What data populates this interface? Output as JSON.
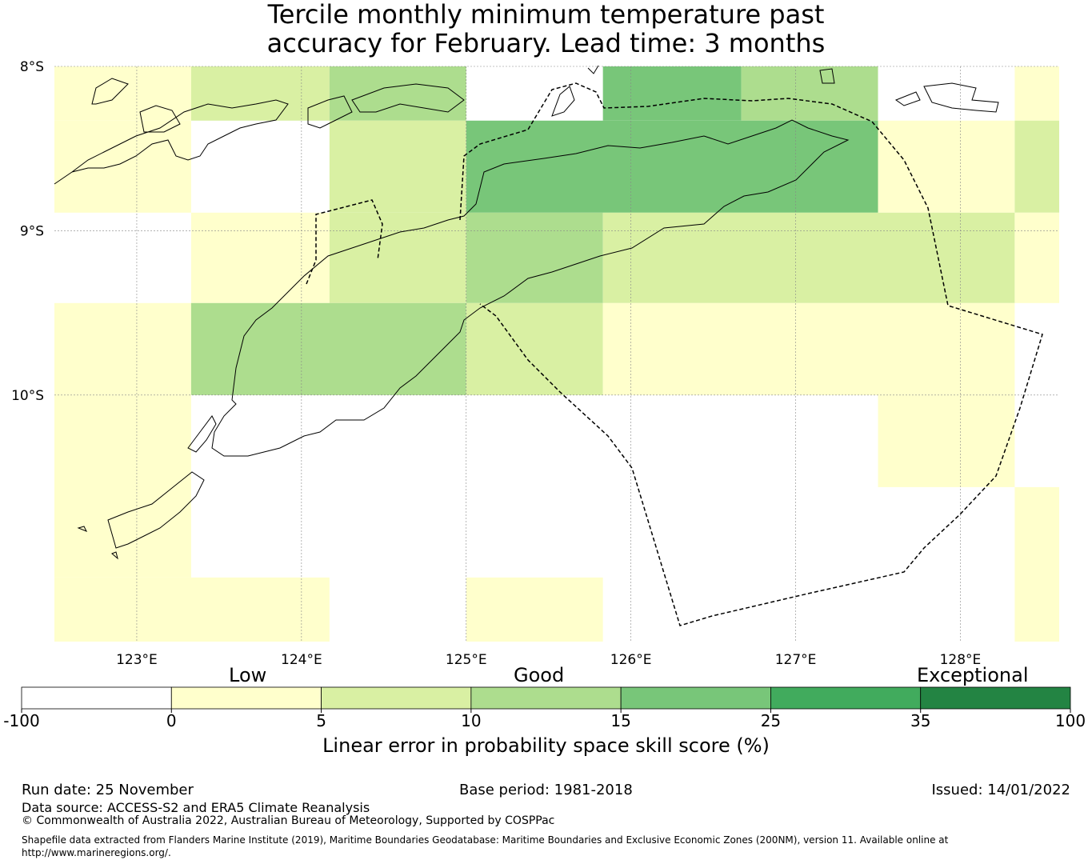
{
  "title": {
    "line1": "Tercile monthly minimum temperature past",
    "line2": "accuracy for February. Lead time: 3 months"
  },
  "map": {
    "lat_labels": [
      "8°S",
      "9°S",
      "10°S"
    ],
    "lon_labels": [
      "123°E",
      "124°E",
      "125°E",
      "126°E",
      "127°E",
      "128°E"
    ],
    "lon_values": [
      123,
      124,
      125,
      126,
      127,
      128
    ],
    "lat_values": [
      -8,
      -9,
      -10
    ],
    "extent": {
      "lon_min": 122.5,
      "lon_max": 128.6,
      "lat_min": -11.5,
      "lat_max": -8.0
    },
    "grid_cells": [
      {
        "lon0": 122.5,
        "lon1": 123.33,
        "lat0": -8.0,
        "lat1": -8.33,
        "cls": 1
      },
      {
        "lon0": 123.33,
        "lon1": 124.17,
        "lat0": -8.0,
        "lat1": -8.33,
        "cls": 2
      },
      {
        "lon0": 124.17,
        "lon1": 125.0,
        "lat0": -8.0,
        "lat1": -8.33,
        "cls": 3
      },
      {
        "lon0": 125.83,
        "lon1": 126.67,
        "lat0": -8.0,
        "lat1": -8.33,
        "cls": 4
      },
      {
        "lon0": 126.67,
        "lon1": 127.5,
        "lat0": -8.0,
        "lat1": -8.33,
        "cls": 3
      },
      {
        "lon0": 128.33,
        "lon1": 128.6,
        "lat0": -8.0,
        "lat1": -8.33,
        "cls": 1
      },
      {
        "lon0": 122.5,
        "lon1": 123.33,
        "lat0": -8.33,
        "lat1": -8.89,
        "cls": 1
      },
      {
        "lon0": 124.17,
        "lon1": 125.0,
        "lat0": -8.33,
        "lat1": -8.89,
        "cls": 2
      },
      {
        "lon0": 125.0,
        "lon1": 127.5,
        "lat0": -8.33,
        "lat1": -8.89,
        "cls": 4
      },
      {
        "lon0": 127.5,
        "lon1": 128.33,
        "lat0": -8.33,
        "lat1": -8.89,
        "cls": 1
      },
      {
        "lon0": 128.33,
        "lon1": 128.6,
        "lat0": -8.33,
        "lat1": -8.89,
        "cls": 2
      },
      {
        "lon0": 123.33,
        "lon1": 124.17,
        "lat0": -8.89,
        "lat1": -9.44,
        "cls": 1
      },
      {
        "lon0": 124.17,
        "lon1": 125.0,
        "lat0": -8.89,
        "lat1": -9.44,
        "cls": 2
      },
      {
        "lon0": 125.0,
        "lon1": 125.83,
        "lat0": -8.89,
        "lat1": -9.44,
        "cls": 3
      },
      {
        "lon0": 125.83,
        "lon1": 128.33,
        "lat0": -8.89,
        "lat1": -9.44,
        "cls": 2
      },
      {
        "lon0": 128.33,
        "lon1": 128.6,
        "lat0": -8.89,
        "lat1": -9.44,
        "cls": 1
      },
      {
        "lon0": 122.5,
        "lon1": 123.33,
        "lat0": -9.44,
        "lat1": -10.0,
        "cls": 1
      },
      {
        "lon0": 123.33,
        "lon1": 125.0,
        "lat0": -9.44,
        "lat1": -10.0,
        "cls": 3
      },
      {
        "lon0": 125.0,
        "lon1": 125.83,
        "lat0": -9.44,
        "lat1": -10.0,
        "cls": 2
      },
      {
        "lon0": 125.83,
        "lon1": 128.33,
        "lat0": -9.44,
        "lat1": -10.0,
        "cls": 1
      },
      {
        "lon0": 122.5,
        "lon1": 123.33,
        "lat0": -10.0,
        "lat1": -11.11,
        "cls": 1
      },
      {
        "lon0": 127.5,
        "lon1": 128.33,
        "lat0": -10.0,
        "lat1": -10.56,
        "cls": 1
      },
      {
        "lon0": 128.33,
        "lon1": 128.6,
        "lat0": -10.56,
        "lat1": -11.5,
        "cls": 1
      },
      {
        "lon0": 122.5,
        "lon1": 124.17,
        "lat0": -11.11,
        "lat1": -11.5,
        "cls": 1
      },
      {
        "lon0": 125.0,
        "lon1": 125.83,
        "lat0": -11.11,
        "lat1": -11.5,
        "cls": 1
      }
    ]
  },
  "colorbar": {
    "colors": [
      "#ffffff",
      "#ffffcc",
      "#d9f0a3",
      "#addd8e",
      "#78c679",
      "#41ab5d",
      "#238443"
    ],
    "ticks": [
      "-100",
      "0",
      "5",
      "10",
      "15",
      "25",
      "35",
      "100"
    ],
    "categories": {
      "low": "Low",
      "good": "Good",
      "exceptional": "Exceptional"
    },
    "label": "Linear error in probability space skill score (%)"
  },
  "footer": {
    "run_date": "Run date: 25 November",
    "base_period": "Base period: 1981-2018",
    "issued": "Issued: 14/01/2022",
    "data_source": "Data source: ACCESS-S2 and ERA5 Climate Reanalysis",
    "copyright": "© Commonwealth of Australia 2022, Australian Bureau of Meteorology, Supported by COSPPac",
    "shapefile": "Shapefile data extracted from Flanders Marine Institute (2019), Maritime Boundaries Geodatabase: Maritime Boundaries and Exclusive Economic Zones (200NM), version 11. Available online at http://www.marineregions.org/."
  }
}
